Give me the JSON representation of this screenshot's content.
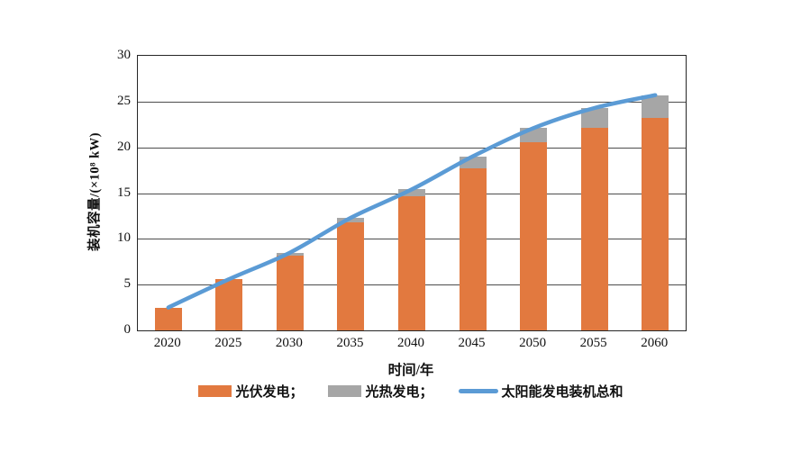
{
  "colors": {
    "pv_bar": "#E2793F",
    "csp_bar": "#A6A6A6",
    "total_line": "#5B9BD5",
    "axis_border": "#262626",
    "gridline": "#4d4d4d",
    "background": "#FFFFFF",
    "text": "#111111"
  },
  "chart_data": {
    "type": "bar",
    "subtype": "stacked-bars-with-line-overlay",
    "categories": [
      "2020",
      "2025",
      "2030",
      "2035",
      "2040",
      "2045",
      "2050",
      "2055",
      "2060"
    ],
    "series": [
      {
        "name": "光伏发电",
        "kind": "bar",
        "stack": "solar",
        "color": "#E2793F",
        "values": [
          2.5,
          5.6,
          8.2,
          11.8,
          14.7,
          17.7,
          20.6,
          22.1,
          23.2
        ]
      },
      {
        "name": "光热发电",
        "kind": "bar",
        "stack": "solar",
        "color": "#A6A6A6",
        "values": [
          0,
          0,
          0.3,
          0.5,
          0.7,
          1.3,
          1.5,
          2.2,
          2.5
        ]
      },
      {
        "name": "太阳能发电装机总和",
        "kind": "line",
        "color": "#5B9BD5",
        "values": [
          2.5,
          5.6,
          8.5,
          12.3,
          15.4,
          19.0,
          22.1,
          24.3,
          25.7
        ]
      }
    ],
    "title": "",
    "xlabel": "时间/年",
    "ylabel": "装机容量/(×10⁸ kW)",
    "ylim": [
      0,
      30
    ],
    "yticks": [
      0,
      5,
      10,
      15,
      20,
      25,
      30
    ],
    "grid": true,
    "legend_position": "bottom"
  },
  "legend": {
    "items": [
      {
        "label": "光伏发电；",
        "swatch": "bar",
        "color": "#E2793F"
      },
      {
        "label": "光热发电；",
        "swatch": "bar",
        "color": "#A6A6A6"
      },
      {
        "label": "太阳能发电装机总和",
        "swatch": "line",
        "color": "#5B9BD5"
      }
    ]
  }
}
